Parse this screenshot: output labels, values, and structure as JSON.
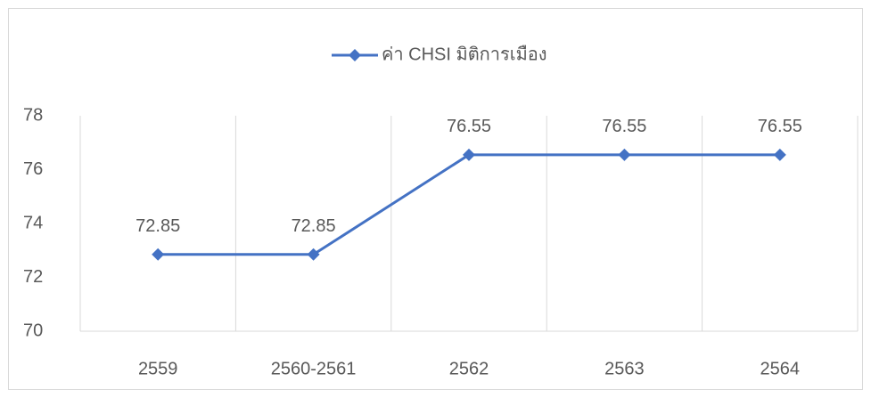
{
  "chart_data": {
    "type": "line",
    "categories": [
      "2559",
      "2560-2561",
      "2562",
      "2563",
      "2564"
    ],
    "series": [
      {
        "name": "ค่า CHSI มิติการเมือง",
        "color": "#4472c4",
        "values": [
          72.85,
          72.85,
          76.55,
          76.55,
          76.55
        ]
      }
    ],
    "ylim": [
      70,
      78
    ],
    "yticks": [
      70,
      72,
      74,
      76,
      78
    ],
    "legend": "top"
  }
}
